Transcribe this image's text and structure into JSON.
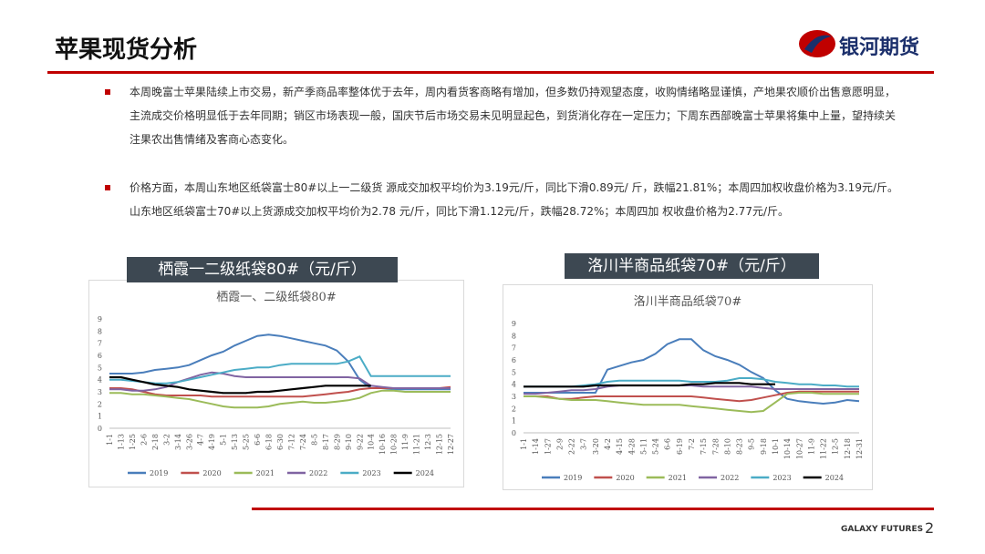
{
  "header": {
    "title": "苹果现货分析",
    "logo": "银河期货"
  },
  "bullets": [
    "本周晚富士苹果陆续上市交易，新产季商品率整体优于去年，周内看货客商略有增加，但多数仍持观望态度，收购情绪略显谨慎，产地果农顺价出售意愿明显，主流成交价格明显低于去年同期；销区市场表现一般，国庆节后市场交易未见明显起色，到货消化存在一定压力；下周东西部晚富士苹果将集中上量，望持续关注果农出售情绪及客商心态变化。",
    "价格方面，本周山东地区纸袋富士80#以上一二级货 源成交加权平均价为3.19元/斤，同比下滑0.89元/ 斤，跌幅21.81%；本周四加权收盘价格为3.19元/斤。 山东地区纸袋富士70#以上货源成交加权平均价为2.78 元/斤，同比下滑1.12元/斤，跌幅28.72%；本周四加 权收盘价格为2.77元/斤。"
  ],
  "chart_labels": [
    "栖霞一二级纸袋80#（元/斤）",
    "洛川半商品纸袋70#（元/斤）"
  ],
  "chart_data": [
    {
      "type": "line",
      "title": "栖霞一、二级纸袋80#",
      "categories": [
        "1-1",
        "1-13",
        "1-25",
        "2-6",
        "2-18",
        "3-2",
        "3-14",
        "3-26",
        "4-7",
        "4-19",
        "5-1",
        "5-13",
        "5-25",
        "6-6",
        "6-18",
        "6-30",
        "7-12",
        "7-24",
        "8-5",
        "8-17",
        "8-29",
        "9-10",
        "9-22",
        "10-4",
        "10-16",
        "10-28",
        "11-9",
        "11-21",
        "12-3",
        "12-15",
        "12-27"
      ],
      "ylim": [
        0,
        9
      ],
      "yticks": [
        0,
        1,
        2,
        3,
        4,
        5,
        6,
        7,
        8,
        9
      ],
      "legend": "bottom",
      "series": [
        {
          "name": "2019",
          "color": "#4a7ebb",
          "values": [
            4.5,
            4.5,
            4.5,
            4.6,
            4.8,
            4.9,
            5.0,
            5.2,
            5.6,
            6.0,
            6.3,
            6.8,
            7.2,
            7.6,
            7.7,
            7.6,
            7.4,
            7.2,
            7.0,
            6.8,
            6.4,
            5.5,
            4.0,
            3.3,
            3.3,
            3.2,
            3.2,
            3.2,
            3.2,
            3.2,
            3.2
          ]
        },
        {
          "name": "2020",
          "color": "#c0504d",
          "values": [
            3.3,
            3.3,
            3.2,
            3.0,
            2.8,
            2.7,
            2.7,
            2.7,
            2.7,
            2.6,
            2.6,
            2.6,
            2.6,
            2.6,
            2.6,
            2.6,
            2.6,
            2.6,
            2.7,
            2.8,
            2.9,
            3.0,
            3.2,
            3.3,
            3.3,
            3.3,
            3.3,
            3.3,
            3.3,
            3.3,
            3.4
          ]
        },
        {
          "name": "2021",
          "color": "#9bbb59",
          "values": [
            2.9,
            2.9,
            2.8,
            2.8,
            2.7,
            2.6,
            2.5,
            2.4,
            2.2,
            2.0,
            1.8,
            1.7,
            1.7,
            1.7,
            1.8,
            2.0,
            2.1,
            2.2,
            2.1,
            2.1,
            2.2,
            2.3,
            2.5,
            2.9,
            3.1,
            3.1,
            3.0,
            3.0,
            3.0,
            3.0,
            3.0
          ]
        },
        {
          "name": "2022",
          "color": "#8064a2",
          "values": [
            3.2,
            3.2,
            3.1,
            3.1,
            3.2,
            3.4,
            3.8,
            4.1,
            4.4,
            4.6,
            4.5,
            4.3,
            4.2,
            4.2,
            4.2,
            4.2,
            4.2,
            4.2,
            4.2,
            4.2,
            4.2,
            4.2,
            4.1,
            3.5,
            3.4,
            3.3,
            3.3,
            3.3,
            3.3,
            3.3,
            3.3
          ]
        },
        {
          "name": "2023",
          "color": "#4bacc6",
          "values": [
            4.0,
            4.0,
            3.9,
            3.8,
            3.7,
            3.7,
            3.8,
            4.0,
            4.2,
            4.4,
            4.6,
            4.8,
            4.9,
            5.0,
            5.0,
            5.2,
            5.3,
            5.3,
            5.3,
            5.3,
            5.3,
            5.5,
            5.9,
            4.3,
            4.3,
            4.3,
            4.3,
            4.3,
            4.3,
            4.3,
            4.3
          ]
        },
        {
          "name": "2024",
          "color": "#000000",
          "values": [
            4.2,
            4.2,
            4.0,
            3.8,
            3.6,
            3.5,
            3.4,
            3.2,
            3.1,
            3.0,
            2.9,
            2.9,
            2.9,
            3.0,
            3.0,
            3.1,
            3.2,
            3.3,
            3.4,
            3.5,
            3.5,
            3.5,
            3.5,
            3.5,
            null,
            null,
            null,
            null,
            null,
            null,
            null
          ]
        }
      ]
    },
    {
      "type": "line",
      "title": "洛川半商品纸袋70#",
      "categories": [
        "1-1",
        "1-14",
        "1-27",
        "2-9",
        "2-22",
        "3-7",
        "3-20",
        "4-2",
        "4-15",
        "4-28",
        "5-11",
        "5-24",
        "6-6",
        "6-19",
        "7-2",
        "7-15",
        "7-28",
        "8-10",
        "8-23",
        "9-5",
        "9-18",
        "10-1",
        "10-14",
        "10-27",
        "11-9",
        "11-22",
        "12-5",
        "12-18",
        "12-31"
      ],
      "ylim": [
        0,
        9
      ],
      "yticks": [
        0,
        1,
        2,
        3,
        4,
        5,
        6,
        7,
        8,
        9
      ],
      "legend": "bottom",
      "series": [
        {
          "name": "2019",
          "color": "#4a7ebb",
          "values": [
            3.3,
            3.3,
            3.3,
            3.3,
            3.3,
            3.3,
            3.3,
            5.2,
            5.5,
            5.8,
            6.0,
            6.5,
            7.3,
            7.7,
            7.7,
            6.8,
            6.3,
            6.0,
            5.6,
            5.0,
            4.5,
            3.5,
            2.8,
            2.6,
            2.5,
            2.4,
            2.5,
            2.7,
            2.6
          ]
        },
        {
          "name": "2020",
          "color": "#c0504d",
          "values": [
            3.0,
            3.0,
            3.0,
            2.8,
            2.8,
            2.9,
            3.0,
            3.0,
            3.0,
            3.0,
            3.0,
            3.0,
            3.0,
            3.0,
            3.0,
            2.9,
            2.8,
            2.7,
            2.6,
            2.7,
            2.9,
            3.1,
            3.3,
            3.4,
            3.4,
            3.4,
            3.4,
            3.4,
            3.4
          ]
        },
        {
          "name": "2021",
          "color": "#9bbb59",
          "values": [
            3.0,
            3.0,
            2.9,
            2.8,
            2.7,
            2.7,
            2.7,
            2.6,
            2.5,
            2.4,
            2.3,
            2.3,
            2.3,
            2.3,
            2.2,
            2.1,
            2.0,
            1.9,
            1.8,
            1.7,
            1.8,
            2.5,
            3.2,
            3.3,
            3.3,
            3.2,
            3.2,
            3.2,
            3.2
          ]
        },
        {
          "name": "2022",
          "color": "#8064a2",
          "values": [
            3.2,
            3.2,
            3.3,
            3.4,
            3.5,
            3.5,
            3.6,
            3.8,
            3.9,
            3.9,
            3.9,
            3.9,
            3.9,
            3.9,
            3.9,
            3.8,
            3.8,
            3.8,
            3.8,
            3.8,
            3.7,
            3.6,
            3.6,
            3.6,
            3.6,
            3.6,
            3.6,
            3.6,
            3.6
          ]
        },
        {
          "name": "2023",
          "color": "#4bacc6",
          "values": [
            3.8,
            3.8,
            3.8,
            3.8,
            3.8,
            3.9,
            4.0,
            4.2,
            4.3,
            4.3,
            4.3,
            4.3,
            4.3,
            4.3,
            4.2,
            4.2,
            4.2,
            4.3,
            4.5,
            4.5,
            4.4,
            4.2,
            4.1,
            4.0,
            4.0,
            3.9,
            3.9,
            3.8,
            3.8
          ]
        },
        {
          "name": "2024",
          "color": "#000000",
          "values": [
            3.8,
            3.8,
            3.8,
            3.8,
            3.8,
            3.8,
            3.9,
            3.9,
            3.9,
            3.9,
            3.9,
            3.9,
            3.9,
            3.9,
            4.0,
            4.0,
            4.1,
            4.1,
            4.1,
            4.0,
            4.0,
            4.0,
            null,
            null,
            null,
            null,
            null,
            null,
            null
          ]
        }
      ]
    }
  ],
  "footer": {
    "brand": "GALAXY FUTURES",
    "page": "2"
  }
}
